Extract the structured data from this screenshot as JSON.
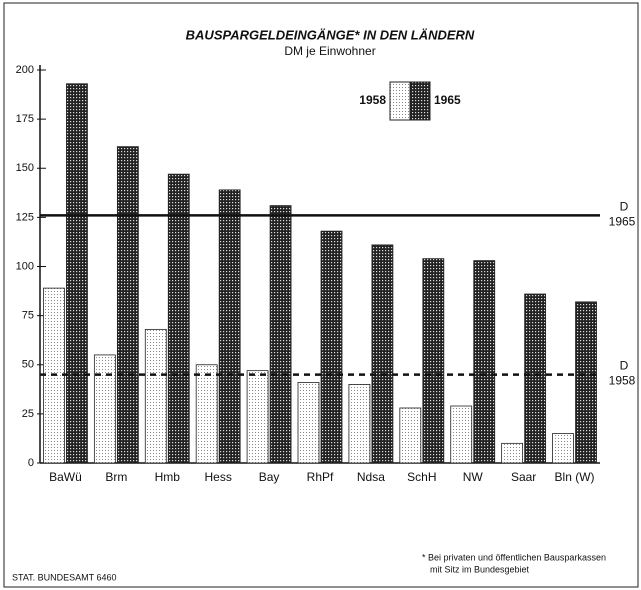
{
  "chart_data": {
    "type": "bar",
    "title": "BAUSPARGELDEINGÄNGE* IN DEN LÄNDERN",
    "subtitle": "DM je Einwohner",
    "categories": [
      "BaWü",
      "Brm",
      "Hmb",
      "Hess",
      "Bay",
      "RhPf",
      "Ndsa",
      "SchH",
      "NW",
      "Saar",
      "Bln (W)"
    ],
    "series": [
      {
        "name": "1958",
        "color": "#ffffff",
        "values": [
          89,
          55,
          68,
          50,
          47,
          41,
          40,
          28,
          29,
          10,
          15
        ]
      },
      {
        "name": "1965",
        "color": "#333333",
        "values": [
          193,
          161,
          147,
          139,
          131,
          118,
          111,
          104,
          103,
          86,
          82
        ]
      }
    ],
    "ylim": [
      0,
      200
    ],
    "yticks": [
      0,
      25,
      50,
      75,
      100,
      125,
      150,
      175,
      200
    ],
    "reference_lines": [
      {
        "label": "D",
        "year": "1965",
        "value": 126,
        "style": "solid"
      },
      {
        "label": "D",
        "year": "1958",
        "value": 45,
        "style": "dashed"
      }
    ],
    "footnote": [
      "* Bei privaten und öffentlichen Bausparkassen",
      "mit Sitz im Bundesgebiet"
    ],
    "source": "STAT. BUNDESAMT 6460"
  }
}
